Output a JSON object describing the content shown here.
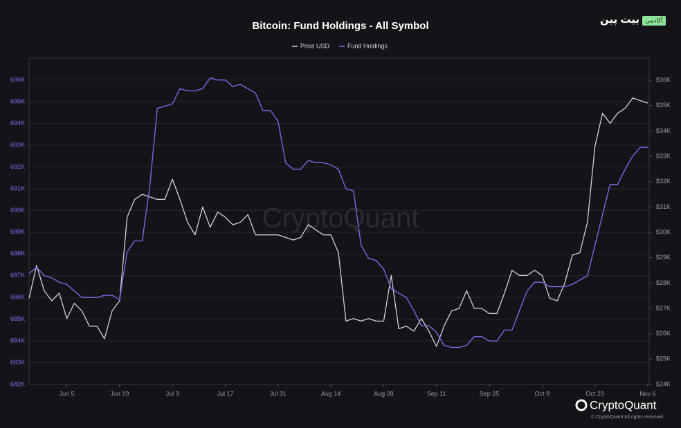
{
  "chart_data": {
    "type": "line",
    "title": "Bitcoin: Fund Holdings - All Symbol",
    "watermark": "CryptoQuant",
    "brand": "CryptoQuant",
    "copyright": "© CryptoQuant All rights reserved.",
    "badge": {
      "name": "بیت پین",
      "tag": "آکادمی"
    },
    "categories": [
      null,
      null,
      null,
      null,
      null,
      "Jun 5",
      null,
      null,
      null,
      null,
      null,
      null,
      "Jun 19",
      null,
      null,
      null,
      null,
      null,
      null,
      "Jul 3",
      null,
      null,
      null,
      null,
      null,
      null,
      "Jul 17",
      null,
      null,
      null,
      null,
      null,
      null,
      "Jul 31",
      null,
      null,
      null,
      null,
      null,
      null,
      "Aug 14",
      null,
      null,
      null,
      null,
      null,
      null,
      "Aug 28",
      null,
      null,
      null,
      null,
      null,
      null,
      "Sep 11",
      null,
      null,
      null,
      null,
      null,
      null,
      "Sep 25",
      null,
      null,
      null,
      null,
      null,
      null,
      "Oct 9",
      null,
      null,
      null,
      null,
      null,
      null,
      "Oct 23",
      null,
      null,
      null,
      null,
      null,
      null,
      "Nov 6"
    ],
    "series": [
      {
        "name": "Price USD",
        "color": "#d4d4d8",
        "axis": "y2",
        "values": [
          27400,
          28700,
          27700,
          27300,
          27600,
          26600,
          27200,
          26900,
          26300,
          26300,
          25800,
          26900,
          27300,
          30600,
          31300,
          31500,
          31400,
          31300,
          31300,
          32100,
          31300,
          30400,
          29900,
          31000,
          30200,
          30800,
          30600,
          30300,
          30400,
          30700,
          29900,
          29900,
          29900,
          29900,
          29800,
          29700,
          29800,
          30300,
          30100,
          29900,
          29900,
          29200,
          26500,
          26600,
          26500,
          26600,
          26500,
          26500,
          28300,
          26200,
          26300,
          26100,
          26600,
          26100,
          25500,
          26300,
          26900,
          27000,
          27700,
          27000,
          27000,
          26800,
          26800,
          27600,
          28500,
          28300,
          28300,
          28500,
          28300,
          27400,
          27300,
          28000,
          29100,
          29200,
          30400,
          33400,
          34700,
          34300,
          34700,
          34900,
          35300,
          35200,
          35100
        ]
      },
      {
        "name": "Fund Holdings",
        "color": "#7b70f2",
        "values": [
          687100,
          687400,
          687000,
          686900,
          686700,
          686600,
          686300,
          686000,
          686000,
          686000,
          686100,
          686100,
          685900,
          688100,
          688600,
          688600,
          691100,
          694700,
          694800,
          694900,
          695600,
          695500,
          695500,
          695600,
          696100,
          696000,
          696000,
          695700,
          695800,
          695600,
          695400,
          694600,
          694600,
          694100,
          692200,
          691900,
          691900,
          692300,
          692200,
          692200,
          692100,
          691900,
          691000,
          690900,
          688400,
          687800,
          687700,
          687300,
          686400,
          686200,
          686000,
          685400,
          684700,
          684700,
          684400,
          683800,
          683700,
          683700,
          683800,
          684200,
          684200,
          684000,
          684000,
          684500,
          684500,
          685400,
          686300,
          686700,
          686700,
          686500,
          686500,
          686500,
          686600,
          686800,
          687000,
          688400,
          689800,
          691200,
          691200,
          691900,
          692500,
          692900,
          692900
        ]
      }
    ],
    "ylim": [
      682000,
      696500
    ],
    "yticks": [
      {
        "value": 682000,
        "label": "682K"
      },
      {
        "value": 683000,
        "label": "683K"
      },
      {
        "value": 684000,
        "label": "684K"
      },
      {
        "value": 685000,
        "label": "685K"
      },
      {
        "value": 686000,
        "label": "686K"
      },
      {
        "value": 687000,
        "label": "687K"
      },
      {
        "value": 688000,
        "label": "688K"
      },
      {
        "value": 689000,
        "label": "689K"
      },
      {
        "value": 690000,
        "label": "690K"
      },
      {
        "value": 691000,
        "label": "691K"
      },
      {
        "value": 692000,
        "label": "692K"
      },
      {
        "value": 693000,
        "label": "693K"
      },
      {
        "value": 694000,
        "label": "694K"
      },
      {
        "value": 695000,
        "label": "695K"
      },
      {
        "value": 696000,
        "label": "696K"
      }
    ],
    "y2lim": [
      24000,
      36440
    ],
    "y2ticks": [
      {
        "value": 24000,
        "label": "$24K"
      },
      {
        "value": 25000,
        "label": "$25K"
      },
      {
        "value": 26000,
        "label": "$26K"
      },
      {
        "value": 27000,
        "label": "$27K"
      },
      {
        "value": 28000,
        "label": "$28K"
      },
      {
        "value": 29000,
        "label": "$29K"
      },
      {
        "value": 30000,
        "label": "$30K"
      },
      {
        "value": 31000,
        "label": "$31K"
      },
      {
        "value": 32000,
        "label": "$32K"
      },
      {
        "value": 33000,
        "label": "$33K"
      },
      {
        "value": 34000,
        "label": "$34K"
      },
      {
        "value": 35000,
        "label": "$35K"
      },
      {
        "value": 36000,
        "label": "$36K"
      }
    ],
    "grid": true,
    "legend": "top"
  }
}
